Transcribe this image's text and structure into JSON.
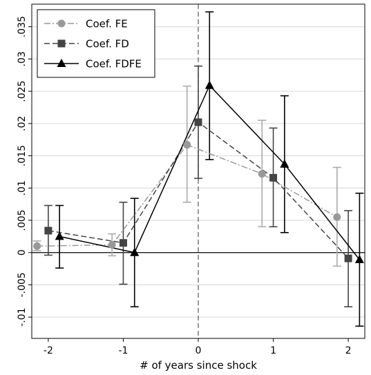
{
  "chart_data": {
    "type": "line",
    "title": "",
    "xlabel": "# of years since shock",
    "ylabel": "",
    "xlim": [
      -2.22,
      2.22
    ],
    "ylim": [
      -0.0133,
      0.0385
    ],
    "x_ticks": [
      -2,
      -1,
      0,
      1,
      2
    ],
    "x_tick_labels": [
      "-2",
      "-1",
      "0",
      "1",
      "2"
    ],
    "y_ticks": [
      -0.01,
      -0.005,
      0,
      0.005,
      0.01,
      0.015,
      0.02,
      0.025,
      0.03,
      0.035
    ],
    "y_tick_labels": [
      "-.01",
      "-.005",
      "0",
      ".005",
      ".01",
      ".015",
      ".02",
      ".025",
      ".03",
      ".035"
    ],
    "grid": true,
    "reference_lines": {
      "x": 0,
      "y": 0
    },
    "legend": {
      "position": "top-left"
    },
    "series": [
      {
        "name": "Coef. FE",
        "marker": "circle",
        "color": "#999999",
        "dash": "dash-dot",
        "x": [
          -2.15,
          -1.15,
          -0.15,
          0.85,
          1.85
        ],
        "y": [
          0.001,
          0.0012,
          0.0167,
          0.0122,
          0.0055
        ],
        "ci_low": [
          0.0003,
          -0.0005,
          0.0078,
          0.004,
          -0.0021
        ],
        "ci_high": [
          0.0018,
          0.0029,
          0.0258,
          0.0205,
          0.0132
        ]
      },
      {
        "name": "Coef. FD",
        "marker": "square",
        "color": "#444444",
        "dash": "dashed",
        "x": [
          -2.0,
          -1.0,
          0.0,
          1.0,
          2.0
        ],
        "y": [
          0.0034,
          0.0015,
          0.0202,
          0.0116,
          -0.0009
        ],
        "ci_low": [
          -0.0004,
          -0.0049,
          0.0115,
          0.004,
          -0.0084
        ],
        "ci_high": [
          0.0073,
          0.0078,
          0.0289,
          0.0193,
          0.0065
        ]
      },
      {
        "name": "Coef. FDFE",
        "marker": "triangle",
        "color": "#000000",
        "dash": "solid",
        "x": [
          -1.85,
          -0.85,
          0.15,
          1.15,
          2.15
        ],
        "y": [
          0.0025,
          0.0,
          0.0259,
          0.0137,
          -0.0011
        ],
        "ci_low": [
          -0.0024,
          -0.0084,
          0.0144,
          0.0031,
          -0.0114
        ],
        "ci_high": [
          0.0073,
          0.0084,
          0.0373,
          0.0243,
          0.0092
        ]
      }
    ]
  }
}
